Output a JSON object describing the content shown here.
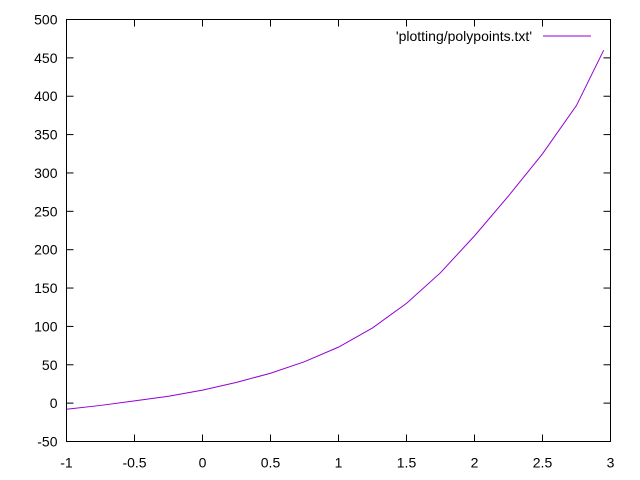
{
  "chart_data": {
    "type": "line",
    "title": "",
    "xlabel": "",
    "ylabel": "",
    "xlim": [
      -1,
      3
    ],
    "ylim": [
      -50,
      500
    ],
    "xticks": [
      "-1",
      "-0.5",
      "0",
      "0.5",
      "1",
      "1.5",
      "2",
      "2.5",
      "3"
    ],
    "yticks": [
      "-50",
      "0",
      "50",
      "100",
      "150",
      "200",
      "250",
      "300",
      "350",
      "400",
      "450",
      "500"
    ],
    "grid": false,
    "legend_position": "top-right",
    "series": [
      {
        "name": "'plotting/polypoints.txt'",
        "color": "#9400d3",
        "x": [
          -1.0,
          -0.75,
          -0.5,
          -0.25,
          0.0,
          0.25,
          0.5,
          0.75,
          1.0,
          1.25,
          1.5,
          1.75,
          2.0,
          2.25,
          2.5,
          2.75,
          2.95
        ],
        "y": [
          -8,
          -3,
          3,
          9,
          17,
          27,
          39,
          54,
          73,
          98,
          130,
          170,
          218,
          270,
          325,
          388,
          460
        ]
      }
    ]
  }
}
